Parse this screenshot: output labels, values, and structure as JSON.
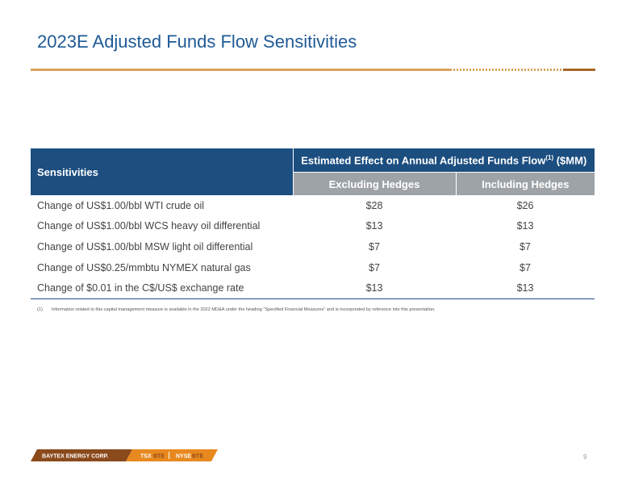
{
  "title": "2023E Adjusted Funds Flow Sensitivities",
  "table": {
    "row_header": "Sensitivities",
    "group_header": {
      "text": "Estimated Effect on Annual Adjusted Funds Flow",
      "sup": "(1)",
      "unit": " ($MM)"
    },
    "columns": [
      "Excluding Hedges",
      "Including Hedges"
    ],
    "rows": [
      {
        "label": "Change of US$1.00/bbl WTI crude oil",
        "excluding": "$28",
        "including": "$26"
      },
      {
        "label": "Change of US$1.00/bbl WCS heavy oil differential",
        "excluding": "$13",
        "including": "$13"
      },
      {
        "label": "Change of US$1.00/bbl MSW light oil differential",
        "excluding": "$7",
        "including": "$7"
      },
      {
        "label": "Change of US$0.25/mmbtu NYMEX natural gas",
        "excluding": "$7",
        "including": "$7"
      },
      {
        "label": "Change of $0.01 in the C$/US$ exchange rate",
        "excluding": "$13",
        "including": "$13"
      }
    ]
  },
  "footnote": {
    "mark": "(1)",
    "text": "Information related to this capital management measure is available in the 2022 MD&A under the heading “Specified Financial Measures” and is incorporated by reference into this presentation."
  },
  "footer": {
    "company": "BAYTEX ENERGY CORP.",
    "tsx_prefix": "TSX",
    "tsx_ticker": "BTE",
    "nyse_prefix": "NYSE",
    "nyse_ticker": "BTE",
    "page_number": "9"
  },
  "colors": {
    "title": "#1f5a96",
    "table_header": "#1c4e80",
    "subheader": "#9ea3a8",
    "accent_orange": "#e8891f",
    "accent_brown": "#8a4a1c"
  }
}
